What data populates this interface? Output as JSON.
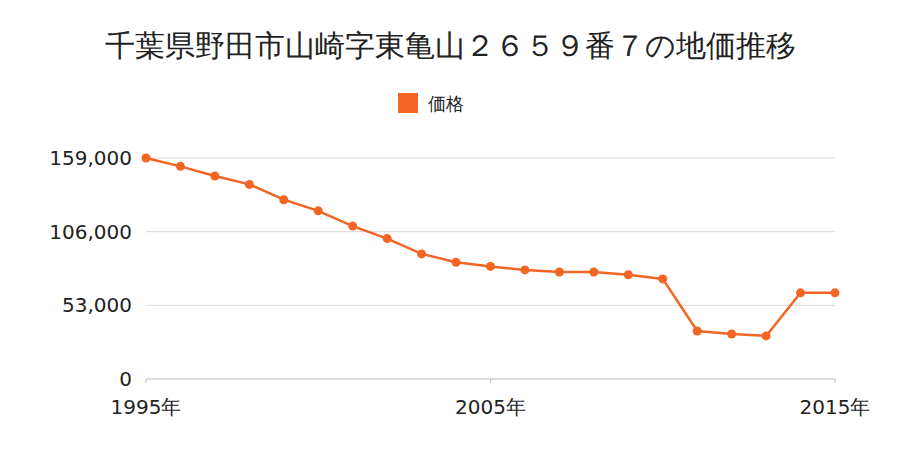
{
  "chart_data": {
    "type": "line",
    "title": "千葉県野田市山崎字東亀山２６５９番７の地価推移",
    "x": [
      1995,
      1996,
      1997,
      1998,
      1999,
      2000,
      2001,
      2002,
      2003,
      2004,
      2005,
      2006,
      2007,
      2008,
      2009,
      2010,
      2011,
      2012,
      2013,
      2014,
      2015
    ],
    "series": [
      {
        "name": "価格",
        "color": "#f26522",
        "marker": "circle",
        "values": [
          159000,
          153000,
          146000,
          140000,
          129000,
          121000,
          110000,
          101000,
          90000,
          84000,
          81000,
          78500,
          77000,
          77000,
          75000,
          72000,
          34500,
          32400,
          31000,
          62000,
          62000
        ]
      }
    ],
    "xlim": [
      1995,
      2015
    ],
    "xticks": [
      {
        "value": 1995,
        "label": "1995年"
      },
      {
        "value": 2005,
        "label": "2005年"
      },
      {
        "value": 2015,
        "label": "2015年"
      }
    ],
    "ylim": [
      0,
      159000
    ],
    "yticks": [
      0,
      {
        "value": 53000,
        "label": "53,000"
      },
      {
        "value": 106000,
        "label": "106,000"
      },
      {
        "value": 159000,
        "label": "159,000"
      }
    ],
    "grid": true,
    "legend": "top"
  }
}
